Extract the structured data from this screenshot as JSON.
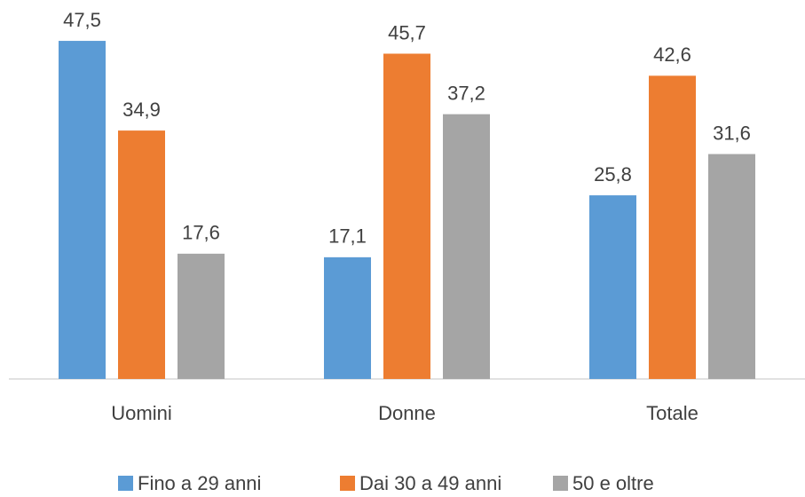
{
  "chart_data": {
    "type": "bar",
    "categories": [
      "Uomini",
      "Donne",
      "Totale"
    ],
    "series": [
      {
        "name": "Fino a 29 anni",
        "color": "#5b9bd5",
        "values": [
          47.5,
          17.1,
          25.8
        ],
        "value_labels": [
          "47,5",
          "17,1",
          "25,8"
        ]
      },
      {
        "name": "Dai 30 a 49 anni",
        "color": "#ed7d31",
        "values": [
          34.9,
          45.7,
          42.6
        ],
        "value_labels": [
          "34,9",
          "45,7",
          "42,6"
        ]
      },
      {
        "name": "50 e oltre",
        "color": "#a5a5a5",
        "values": [
          17.6,
          37.2,
          31.6
        ],
        "value_labels": [
          "17,6",
          "37,2",
          "31,6"
        ]
      }
    ],
    "ylim": [
      0,
      50
    ],
    "legend": "bottom"
  }
}
